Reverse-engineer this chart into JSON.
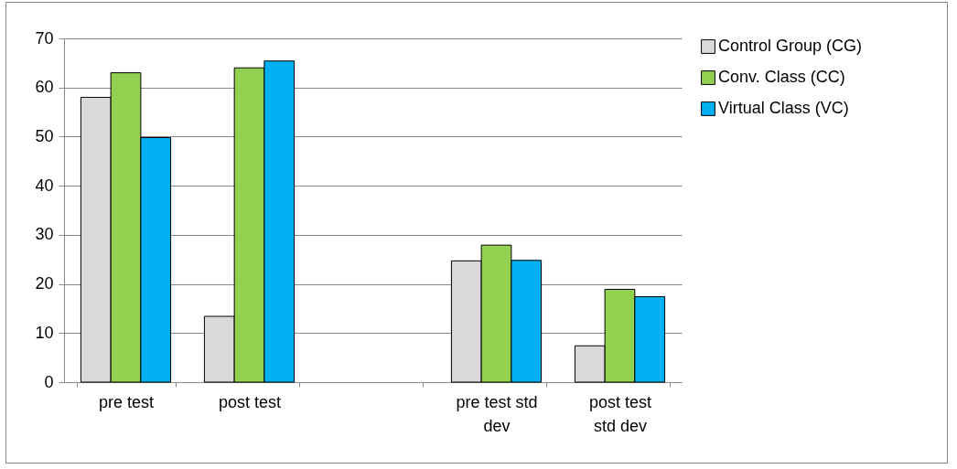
{
  "chart_data": {
    "type": "bar",
    "categories": [
      "pre test",
      "post test",
      null,
      "pre test std dev",
      "post test std dev"
    ],
    "series": [
      {
        "name": "Control Group (CG)",
        "color": "#d9d9d9",
        "values": [
          58,
          13.4,
          null,
          24.7,
          7.4
        ]
      },
      {
        "name": "Conv. Class (CC)",
        "color": "#92d050",
        "values": [
          63,
          64,
          null,
          27.9,
          18.9
        ]
      },
      {
        "name": "Virtual Class (VC)",
        "color": "#00b0f0",
        "values": [
          49.8,
          65.4,
          null,
          24.8,
          17.4
        ]
      }
    ],
    "ylim": [
      0,
      70
    ],
    "yticks": [
      0,
      10,
      20,
      30,
      40,
      50,
      60,
      70
    ],
    "grid": "y",
    "legend": "right"
  }
}
